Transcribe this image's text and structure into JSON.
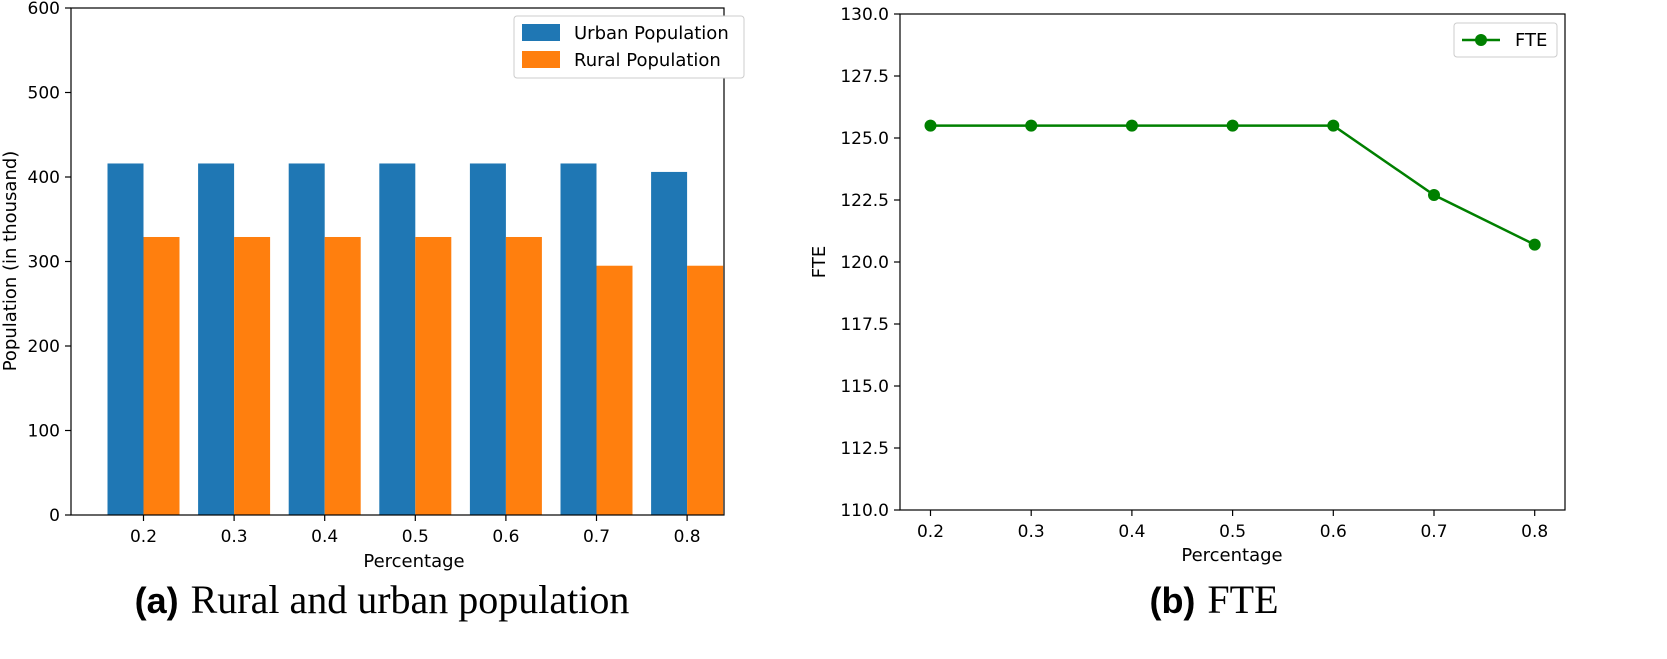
{
  "chart_data": [
    {
      "type": "bar",
      "categories": [
        "0.2",
        "0.3",
        "0.4",
        "0.5",
        "0.6",
        "0.7",
        "0.8"
      ],
      "series": [
        {
          "name": "Urban Population",
          "values": [
            416,
            416,
            416,
            416,
            416,
            416,
            406
          ],
          "color": "#1f77b4"
        },
        {
          "name": "Rural Population",
          "values": [
            329,
            329,
            329,
            329,
            329,
            295,
            295
          ],
          "color": "#ff7f0e"
        }
      ],
      "xlabel": "Percentage",
      "ylabel": "Population (in thousand)",
      "ylim": [
        0,
        600
      ],
      "yticks": [
        "0",
        "100",
        "200",
        "300",
        "400",
        "500",
        "600"
      ],
      "legend": "top-right",
      "grid": false,
      "caption_label": "(a)",
      "caption_text": "Rural and urban population"
    },
    {
      "type": "line",
      "x": [
        0.2,
        0.3,
        0.4,
        0.5,
        0.6,
        0.7,
        0.8
      ],
      "xticks": [
        "0.2",
        "0.3",
        "0.4",
        "0.5",
        "0.6",
        "0.7",
        "0.8"
      ],
      "series": [
        {
          "name": "FTE",
          "values": [
            125.5,
            125.5,
            125.5,
            125.5,
            125.5,
            122.7,
            120.7
          ],
          "color": "#008000"
        }
      ],
      "xlabel": "Percentage",
      "ylabel": "FTE",
      "ylim": [
        110.0,
        130.0
      ],
      "yticks": [
        "110.0",
        "112.5",
        "115.0",
        "117.5",
        "120.0",
        "122.5",
        "125.0",
        "127.5",
        "130.0"
      ],
      "legend": "top-right",
      "grid": false,
      "caption_label": "(b)",
      "caption_text": "FTE"
    }
  ]
}
